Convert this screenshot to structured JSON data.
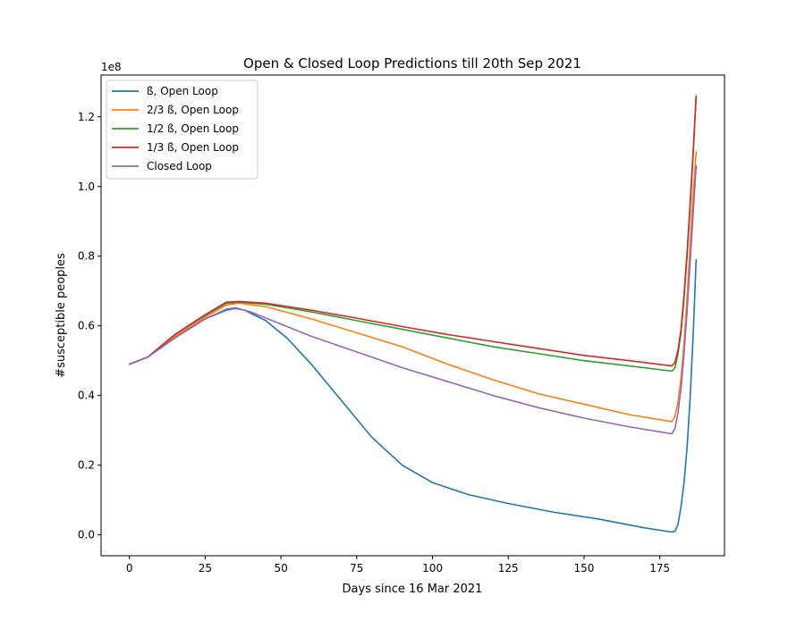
{
  "chart_data": {
    "type": "line",
    "title": "Open & Closed Loop Predictions till 20th Sep 2021",
    "xlabel": "Days since 16 Mar 2021",
    "ylabel": "#susceptible peoples",
    "y_offset_label": "1e8",
    "xlim": [
      -9.35,
      196.35
    ],
    "ylim": [
      -6000000.0,
      132000000.0
    ],
    "xticks": [
      0,
      25,
      50,
      75,
      100,
      125,
      150,
      175
    ],
    "yticks": [
      0.0,
      0.2,
      0.4,
      0.6,
      0.8,
      1.0,
      1.2
    ],
    "ytick_labels": [
      "0.0",
      "0.2",
      "0.4",
      "0.6",
      "0.8",
      "1.0",
      "1.2"
    ],
    "grid": false,
    "legend_position": "upper-left",
    "series": [
      {
        "name": "ß, Open Loop",
        "color": "#1f77b4",
        "points": [
          [
            0,
            49000000.0
          ],
          [
            6,
            51000000.0
          ],
          [
            15,
            56500000.0
          ],
          [
            25,
            62000000.0
          ],
          [
            32,
            64500000.0
          ],
          [
            35,
            65000000.0
          ],
          [
            38,
            64500000.0
          ],
          [
            45,
            61500000.0
          ],
          [
            52,
            56500000.0
          ],
          [
            60,
            49000000.0
          ],
          [
            70,
            38500000.0
          ],
          [
            80,
            28000000.0
          ],
          [
            90,
            20000000.0
          ],
          [
            100,
            15000000.0
          ],
          [
            112,
            11500000.0
          ],
          [
            125,
            9000000.0
          ],
          [
            140,
            6500000.0
          ],
          [
            155,
            4500000.0
          ],
          [
            170,
            2000000.0
          ],
          [
            179,
            800000.0
          ],
          [
            180,
            1000000.0
          ],
          [
            181,
            3000000.0
          ],
          [
            182,
            8000000.0
          ],
          [
            183,
            15000000.0
          ],
          [
            184,
            25000000.0
          ],
          [
            185,
            39000000.0
          ],
          [
            186,
            57000000.0
          ],
          [
            187,
            79000000.0
          ]
        ]
      },
      {
        "name": "2/3 ß, Open Loop",
        "color": "#ff7f0e",
        "points": [
          [
            0,
            49000000.0
          ],
          [
            6,
            51000000.0
          ],
          [
            15,
            57000000.0
          ],
          [
            25,
            62500000.0
          ],
          [
            32,
            66000000.0
          ],
          [
            36,
            66500000.0
          ],
          [
            45,
            65500000.0
          ],
          [
            60,
            62000000.0
          ],
          [
            75,
            58000000.0
          ],
          [
            90,
            54000000.0
          ],
          [
            105,
            49000000.0
          ],
          [
            120,
            44500000.0
          ],
          [
            135,
            40500000.0
          ],
          [
            150,
            37500000.0
          ],
          [
            165,
            34500000.0
          ],
          [
            179,
            32500000.0
          ],
          [
            180,
            34000000.0
          ],
          [
            181,
            38000000.0
          ],
          [
            182,
            45000000.0
          ],
          [
            183,
            55000000.0
          ],
          [
            184,
            68000000.0
          ],
          [
            185,
            83000000.0
          ],
          [
            186,
            98000000.0
          ],
          [
            187,
            110000000.0
          ]
        ]
      },
      {
        "name": "1/2 ß, Open Loop",
        "color": "#2ca02c",
        "points": [
          [
            0,
            49000000.0
          ],
          [
            6,
            51000000.0
          ],
          [
            15,
            57500000.0
          ],
          [
            25,
            63000000.0
          ],
          [
            32,
            66500000.0
          ],
          [
            36,
            66800000.0
          ],
          [
            45,
            66200000.0
          ],
          [
            60,
            64000000.0
          ],
          [
            75,
            61500000.0
          ],
          [
            90,
            59000000.0
          ],
          [
            105,
            56500000.0
          ],
          [
            120,
            54000000.0
          ],
          [
            135,
            52000000.0
          ],
          [
            150,
            50000000.0
          ],
          [
            165,
            48500000.0
          ],
          [
            179,
            47000000.0
          ],
          [
            180,
            48000000.0
          ],
          [
            181,
            52000000.0
          ],
          [
            182,
            58000000.0
          ],
          [
            183,
            68000000.0
          ],
          [
            184,
            80000000.0
          ],
          [
            185,
            94000000.0
          ],
          [
            186,
            109000000.0
          ],
          [
            187,
            126000000.0
          ]
        ]
      },
      {
        "name": "1/3 ß, Open Loop",
        "color": "#d62728",
        "points": [
          [
            0,
            49000000.0
          ],
          [
            6,
            51000000.0
          ],
          [
            15,
            57500000.0
          ],
          [
            25,
            63200000.0
          ],
          [
            32,
            66800000.0
          ],
          [
            36,
            67000000.0
          ],
          [
            45,
            66500000.0
          ],
          [
            60,
            64500000.0
          ],
          [
            75,
            62200000.0
          ],
          [
            90,
            59800000.0
          ],
          [
            105,
            57500000.0
          ],
          [
            120,
            55500000.0
          ],
          [
            135,
            53500000.0
          ],
          [
            150,
            51500000.0
          ],
          [
            165,
            50000000.0
          ],
          [
            179,
            48500000.0
          ],
          [
            180,
            49500000.0
          ],
          [
            181,
            53000000.0
          ],
          [
            182,
            59000000.0
          ],
          [
            183,
            69000000.0
          ],
          [
            184,
            81000000.0
          ],
          [
            185,
            95000000.0
          ],
          [
            186,
            110000000.0
          ],
          [
            187,
            126000000.0
          ]
        ]
      },
      {
        "name": "Closed Loop",
        "color": "#9467bd",
        "points": [
          [
            0,
            49000000.0
          ],
          [
            6,
            51000000.0
          ],
          [
            15,
            56500000.0
          ],
          [
            25,
            62000000.0
          ],
          [
            32,
            64800000.0
          ],
          [
            35,
            65200000.0
          ],
          [
            40,
            64000000.0
          ],
          [
            50,
            60500000.0
          ],
          [
            60,
            57000000.0
          ],
          [
            75,
            52500000.0
          ],
          [
            90,
            48000000.0
          ],
          [
            105,
            44000000.0
          ],
          [
            120,
            40000000.0
          ],
          [
            135,
            36500000.0
          ],
          [
            150,
            33500000.0
          ],
          [
            165,
            31000000.0
          ],
          [
            179,
            29000000.0
          ],
          [
            180,
            30500000.0
          ],
          [
            181,
            35000000.0
          ],
          [
            182,
            42000000.0
          ],
          [
            183,
            52000000.0
          ],
          [
            184,
            64000000.0
          ],
          [
            185,
            78000000.0
          ],
          [
            186,
            92000000.0
          ],
          [
            187,
            106000000.0
          ]
        ]
      }
    ]
  }
}
